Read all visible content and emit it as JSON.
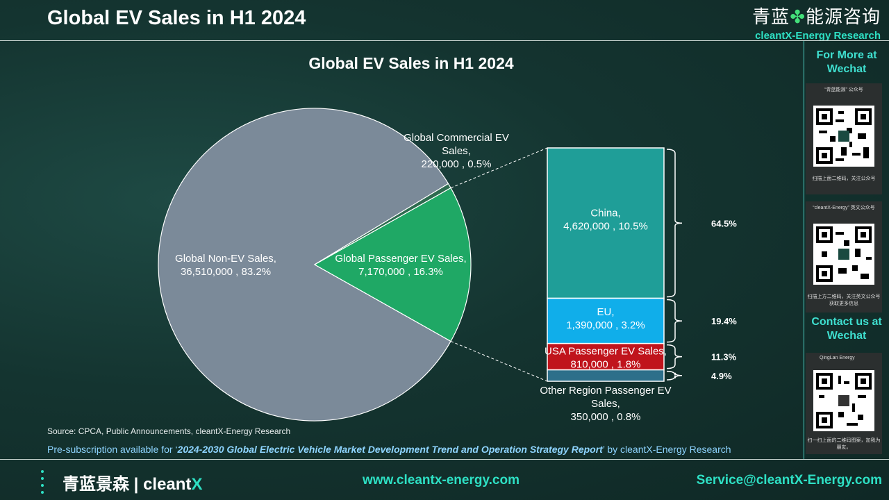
{
  "header": {
    "title": "Global EV Sales in H1 2024",
    "brand_cn": "青蓝",
    "brand_cn_rest": "能源咨询",
    "brand_en": "cleantX-Energy Research"
  },
  "sidebar": {
    "more_heading": "For More at Wechat",
    "card1_caption": "“青蓝能源” 公众号",
    "card1_footer": "扫描上面二维码，关注公众号",
    "card2_caption": "“cleantX-Energy” 英文公众号",
    "card2_footer": "扫描上方二维码，关注英文公众号 获取更多信息",
    "contact_heading": "Contact us at Wechat",
    "card3_caption": "QingLan Energy",
    "card3_footer": "扫一扫上面的二维码图案，加我为朋友。"
  },
  "chart_data": {
    "type": "pie",
    "title": "Global EV Sales in H1 2024",
    "pie": [
      {
        "name": "Global Non-EV Sales",
        "value": 36510000,
        "percent": "83.2%",
        "label_line1": "Global Non-EV Sales,",
        "label_line2": "36,510,000 , 83.2%",
        "color": "#7b8a99"
      },
      {
        "name": "Global Passenger EV Sales",
        "value": 7170000,
        "percent": "16.3%",
        "label_line1": "Global Passenger EV Sales,",
        "label_line2": "7,170,000 , 16.3%",
        "color": "#1fa865"
      },
      {
        "name": "Global Commercial EV Sales",
        "value": 220000,
        "percent": "0.5%",
        "label_line1": "Global Commercial EV",
        "label_line2": "Sales,",
        "label_line3": "220,000 , 0.5%",
        "color": "#2e6b4f"
      }
    ],
    "breakdown_of": "Global Passenger EV Sales",
    "breakdown": [
      {
        "name": "China",
        "value": 4620000,
        "percent": "10.5%",
        "share": "64.5%",
        "label_line1": "China,",
        "label_line2": "4,620,000 , 10.5%",
        "color": "#1f9e98"
      },
      {
        "name": "EU",
        "value": 1390000,
        "percent": "3.2%",
        "share": "19.4%",
        "label_line1": "EU,",
        "label_line2": "1,390,000 , 3.2%",
        "color": "#10aeea"
      },
      {
        "name": "USA Passenger EV Sales",
        "value": 810000,
        "percent": "1.8%",
        "share": "11.3%",
        "label_line1": "USA Passenger EV Sales,",
        "label_line2": "810,000 , 1.8%",
        "color": "#c0141c"
      },
      {
        "name": "Other Region Passenger EV Sales",
        "value": 350000,
        "percent": "0.8%",
        "share": "4.9%",
        "label_line1": "Other Region Passenger EV",
        "label_line2": "Sales,",
        "label_line3": "350,000 , 0.8%",
        "color": "#2d6f8a"
      }
    ]
  },
  "source": "Source: CPCA, Public Announcements, cleantX-Energy Research",
  "presub": {
    "prefix": "Pre-subscription available for ‘",
    "report": "2024-2030 Global Electric Vehicle Market Development Trend and Operation Strategy Report",
    "suffix": "’ by cleantX-Energy Research"
  },
  "footer": {
    "logo_cn": "青蓝景森",
    "logo_sep": "|",
    "logo_en": "cleant",
    "logo_x": "X",
    "website": "www.cleantx-energy.com",
    "email": "Service@cleantX-Energy.com"
  }
}
